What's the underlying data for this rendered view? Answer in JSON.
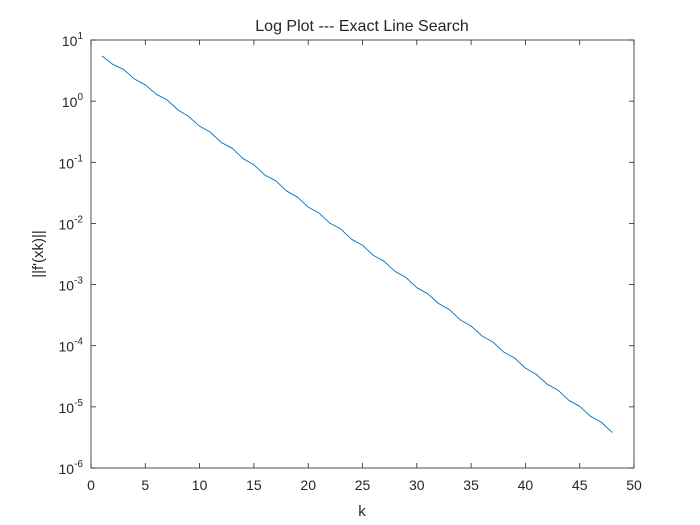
{
  "chart_data": {
    "type": "line",
    "title": "Log Plot --- Exact Line Search",
    "xlabel": "k",
    "ylabel": "||f'(xk)||",
    "xlim": [
      0,
      50
    ],
    "ylim": [
      1e-06,
      10
    ],
    "yscale": "log",
    "grid": false,
    "xticks": [
      0,
      5,
      10,
      15,
      20,
      25,
      30,
      35,
      40,
      45,
      50
    ],
    "xtick_labels": [
      "0",
      "5",
      "10",
      "15",
      "20",
      "25",
      "30",
      "35",
      "40",
      "45",
      "50"
    ],
    "yticks": [
      1e-06,
      1e-05,
      0.0001,
      0.001,
      0.01,
      0.1,
      1,
      10
    ],
    "ytick_labels": [
      {
        "base": "10",
        "exp": "-6"
      },
      {
        "base": "10",
        "exp": "-5"
      },
      {
        "base": "10",
        "exp": "-4"
      },
      {
        "base": "10",
        "exp": "-3"
      },
      {
        "base": "10",
        "exp": "-2"
      },
      {
        "base": "10",
        "exp": "-1"
      },
      {
        "base": "10",
        "exp": "0"
      },
      {
        "base": "10",
        "exp": "1"
      }
    ],
    "series": [
      {
        "color": "#0072BD",
        "x": [
          1,
          2,
          3,
          4,
          5,
          6,
          7,
          8,
          9,
          10,
          11,
          12,
          13,
          14,
          15,
          16,
          17,
          18,
          19,
          20,
          21,
          22,
          23,
          24,
          25,
          26,
          27,
          28,
          29,
          30,
          31,
          32,
          33,
          34,
          35,
          36,
          37,
          38,
          39,
          40,
          41,
          42,
          43,
          44,
          45,
          46,
          47,
          48
        ],
        "y": [
          5.5,
          4.0,
          3.3,
          2.3,
          1.85,
          1.3,
          1.05,
          0.72,
          0.56,
          0.39,
          0.31,
          0.21,
          0.17,
          0.115,
          0.091,
          0.062,
          0.05,
          0.034,
          0.027,
          0.0185,
          0.0148,
          0.0101,
          0.0081,
          0.0055,
          0.0044,
          0.003,
          0.0024,
          0.00164,
          0.00131,
          0.00089,
          0.00071,
          0.00049,
          0.00039,
          0.000265,
          0.00021,
          0.000145,
          0.000115,
          7.9e-05,
          6.3e-05,
          4.3e-05,
          3.4e-05,
          2.35e-05,
          1.88e-05,
          1.28e-05,
          1.02e-05,
          7e-06,
          5.6e-06,
          3.8e-06
        ]
      }
    ]
  }
}
